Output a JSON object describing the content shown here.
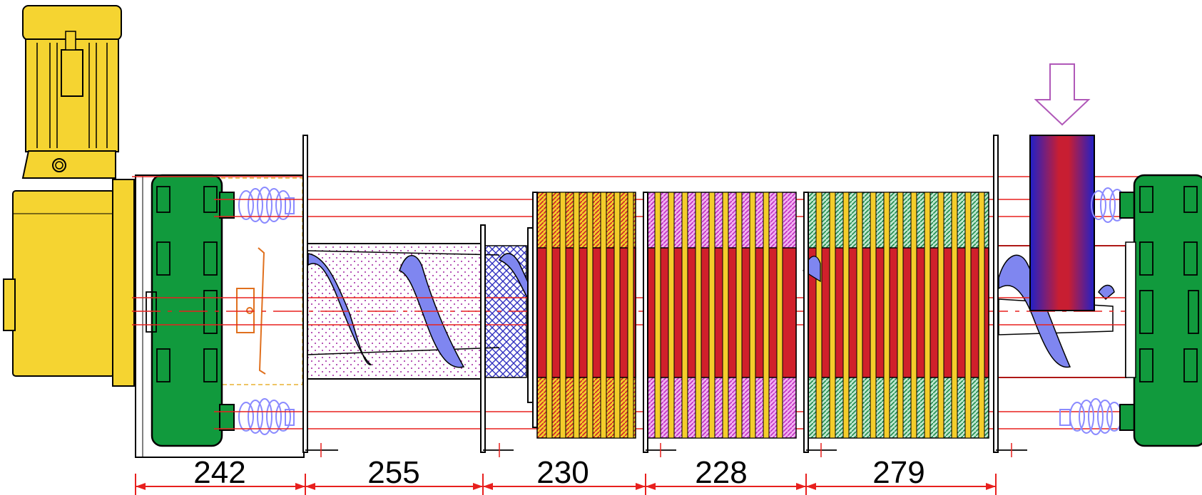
{
  "dimensions": {
    "segments": [
      {
        "label": "242"
      },
      {
        "label": "255"
      },
      {
        "label": "230"
      },
      {
        "label": "228"
      },
      {
        "label": "279"
      }
    ]
  },
  "colors": {
    "motor": "#f5d431",
    "gearbox": "#119a3d",
    "spring": "#9b9bff",
    "screw": "#7f86f0",
    "shaft_line": "#e8201e",
    "disc_yellow": "#f4cd2b",
    "disc_red": "#d0202b",
    "spacer_pink": "#e070e0",
    "spacer_green": "#8ad8b0",
    "hopper_top": "#2020c8",
    "hopper_mid": "#c81e32",
    "arrow": "#b058b8"
  },
  "icons": {
    "inlet_arrow": "down-arrow-icon"
  }
}
